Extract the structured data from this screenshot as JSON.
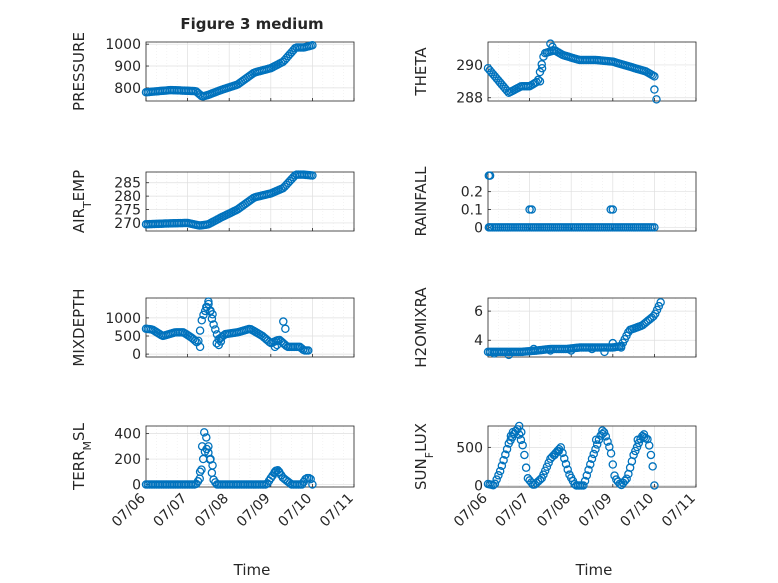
{
  "figure": {
    "title": "Figure 3 medium",
    "xlabel": "Time",
    "colors": {
      "marker": "#0072bd",
      "axes": "#262626",
      "grid": "#dfdfdf",
      "minor_grid": "#ececec",
      "background": "#ffffff"
    }
  },
  "chart_data": [
    {
      "type": "scatter",
      "marker": "circle-open",
      "title": "Figure 3 medium",
      "ylabel": "PRESSURE",
      "ylim": [
        740,
        1010
      ],
      "yticks": [
        800,
        900,
        1000
      ],
      "xlim": [
        0,
        5
      ],
      "xticklabels": [
        "07/06",
        "07/07",
        "07/08",
        "07/09",
        "07/10",
        "07/11"
      ],
      "show_xticklabels": false,
      "xlabel": "",
      "knots": [
        [
          0,
          780
        ],
        [
          0.6,
          790
        ],
        [
          1.2,
          785
        ],
        [
          1.35,
          760
        ],
        [
          1.5,
          768
        ],
        [
          1.8,
          790
        ],
        [
          2.2,
          815
        ],
        [
          2.6,
          870
        ],
        [
          3.0,
          890
        ],
        [
          3.3,
          920
        ],
        [
          3.6,
          985
        ],
        [
          3.8,
          985
        ],
        [
          4.0,
          995
        ]
      ]
    },
    {
      "type": "scatter",
      "marker": "circle-open",
      "title": "",
      "ylabel": "THETA",
      "ylim": [
        287.8,
        291.4
      ],
      "yticks": [
        288,
        290
      ],
      "xlim": [
        0,
        5
      ],
      "xticklabels": [
        "07/06",
        "07/07",
        "07/08",
        "07/09",
        "07/10",
        "07/11"
      ],
      "show_xticklabels": false,
      "xlabel": "",
      "knots": [
        [
          0,
          289.8
        ],
        [
          0.3,
          288.9
        ],
        [
          0.5,
          288.3
        ],
        [
          0.8,
          288.7
        ],
        [
          1.0,
          288.7
        ],
        [
          1.2,
          289.0
        ],
        [
          1.35,
          290.7
        ],
        [
          1.6,
          290.9
        ],
        [
          1.8,
          290.6
        ],
        [
          2.2,
          290.3
        ],
        [
          2.6,
          290.3
        ],
        [
          3.0,
          290.2
        ],
        [
          3.4,
          289.9
        ],
        [
          3.8,
          289.6
        ],
        [
          4.0,
          289.3
        ]
      ],
      "extra_points": [
        [
          1.5,
          291.3
        ],
        [
          1.55,
          291.1
        ],
        [
          1.3,
          289.8
        ],
        [
          1.25,
          289.0
        ],
        [
          4.0,
          288.5
        ],
        [
          4.05,
          287.9
        ]
      ]
    },
    {
      "type": "scatter",
      "marker": "circle-open",
      "title": "",
      "ylabel": "AIR_TEMP",
      "ylabel_parts": [
        "AIR",
        "T",
        "EMP"
      ],
      "ylim": [
        267,
        289
      ],
      "yticks": [
        270,
        275,
        280,
        285
      ],
      "xlim": [
        0,
        5
      ],
      "xticklabels": [
        "07/06",
        "07/07",
        "07/08",
        "07/09",
        "07/10",
        "07/11"
      ],
      "show_xticklabels": false,
      "xlabel": "",
      "knots": [
        [
          0,
          269.5
        ],
        [
          0.5,
          269.8
        ],
        [
          1.0,
          270.0
        ],
        [
          1.3,
          269.0
        ],
        [
          1.5,
          269.5
        ],
        [
          1.8,
          272
        ],
        [
          2.2,
          275
        ],
        [
          2.6,
          279.5
        ],
        [
          3.0,
          281
        ],
        [
          3.3,
          283
        ],
        [
          3.6,
          288
        ],
        [
          3.8,
          288
        ],
        [
          4.0,
          287.7
        ]
      ]
    },
    {
      "type": "scatter",
      "marker": "circle-open",
      "title": "",
      "ylabel": "RAINFALL",
      "ylim": [
        -0.02,
        0.31
      ],
      "yticks": [
        0,
        0.1,
        0.2
      ],
      "xlim": [
        0,
        5
      ],
      "xticklabels": [
        "07/06",
        "07/07",
        "07/08",
        "07/09",
        "07/10",
        "07/11"
      ],
      "show_xticklabels": false,
      "xlabel": "",
      "knots": [
        [
          0,
          0
        ],
        [
          4.0,
          0
        ]
      ],
      "extra_points": [
        [
          0.02,
          0.29
        ],
        [
          0.05,
          0.29
        ],
        [
          0.02,
          0
        ],
        [
          0.05,
          0
        ],
        [
          0.1,
          0
        ],
        [
          0.15,
          0
        ],
        [
          0.2,
          0
        ],
        [
          0.25,
          0
        ],
        [
          0.3,
          0
        ],
        [
          0.35,
          0
        ],
        [
          0.4,
          0
        ],
        [
          0.45,
          0
        ],
        [
          0.5,
          0
        ],
        [
          0.55,
          0
        ],
        [
          0.6,
          0
        ],
        [
          0.65,
          0
        ],
        [
          0.7,
          0
        ],
        [
          0.75,
          0
        ],
        [
          0.8,
          0
        ],
        [
          0.85,
          0
        ],
        [
          0.9,
          0
        ],
        [
          0.95,
          0
        ],
        [
          1.0,
          0
        ],
        [
          1.05,
          0
        ],
        [
          1.1,
          0
        ],
        [
          1.15,
          0
        ],
        [
          1.2,
          0
        ],
        [
          1.25,
          0
        ],
        [
          1.3,
          0
        ],
        [
          1.35,
          0
        ],
        [
          1.4,
          0
        ],
        [
          1.45,
          0
        ],
        [
          1.5,
          0
        ],
        [
          1.55,
          0
        ],
        [
          1.6,
          0
        ],
        [
          1.65,
          0
        ],
        [
          1.7,
          0
        ],
        [
          1.75,
          0
        ],
        [
          1.8,
          0
        ],
        [
          1.85,
          0
        ],
        [
          1.9,
          0
        ],
        [
          1.95,
          0
        ],
        [
          2.0,
          0
        ],
        [
          2.05,
          0
        ],
        [
          2.1,
          0
        ],
        [
          2.15,
          0
        ],
        [
          2.2,
          0
        ],
        [
          2.25,
          0
        ],
        [
          2.3,
          0
        ],
        [
          2.35,
          0
        ],
        [
          2.4,
          0
        ],
        [
          2.45,
          0
        ],
        [
          2.5,
          0
        ],
        [
          2.55,
          0
        ],
        [
          2.6,
          0
        ],
        [
          2.65,
          0
        ],
        [
          2.7,
          0
        ],
        [
          2.75,
          0
        ],
        [
          2.8,
          0
        ],
        [
          2.85,
          0
        ],
        [
          2.9,
          0
        ],
        [
          2.95,
          0
        ],
        [
          3.0,
          0
        ],
        [
          3.05,
          0
        ],
        [
          3.1,
          0
        ],
        [
          3.15,
          0
        ],
        [
          3.2,
          0
        ],
        [
          3.25,
          0
        ],
        [
          3.3,
          0
        ],
        [
          3.35,
          0
        ],
        [
          3.4,
          0
        ],
        [
          3.45,
          0
        ],
        [
          3.5,
          0
        ],
        [
          3.55,
          0
        ],
        [
          3.6,
          0
        ],
        [
          3.65,
          0
        ],
        [
          3.7,
          0
        ],
        [
          3.75,
          0
        ],
        [
          3.8,
          0
        ],
        [
          3.85,
          0
        ],
        [
          3.9,
          0
        ],
        [
          3.95,
          0
        ],
        [
          4.0,
          0
        ],
        [
          1.0,
          0.1
        ],
        [
          1.05,
          0.1
        ],
        [
          2.95,
          0.1
        ],
        [
          3.0,
          0.1
        ]
      ]
    },
    {
      "type": "scatter",
      "marker": "circle-open",
      "title": "",
      "ylabel": "MIXDEPTH",
      "ylim": [
        -80,
        1550
      ],
      "yticks": [
        0,
        500,
        1000
      ],
      "xlim": [
        0,
        5
      ],
      "xticklabels": [
        "07/06",
        "07/07",
        "07/08",
        "07/09",
        "07/10",
        "07/11"
      ],
      "show_xticklabels": false,
      "xlabel": "",
      "knots": [
        [
          0,
          700
        ],
        [
          0.15,
          680
        ],
        [
          0.4,
          500
        ],
        [
          0.7,
          600
        ],
        [
          0.9,
          600
        ],
        [
          1.1,
          450
        ],
        [
          1.25,
          300
        ],
        [
          1.35,
          1000
        ],
        [
          1.5,
          1400
        ],
        [
          1.6,
          900
        ],
        [
          1.75,
          400
        ],
        [
          1.9,
          550
        ],
        [
          2.2,
          600
        ],
        [
          2.5,
          700
        ],
        [
          2.8,
          500
        ],
        [
          3.0,
          300
        ],
        [
          3.2,
          400
        ],
        [
          3.4,
          200
        ],
        [
          3.7,
          200
        ],
        [
          3.8,
          100
        ],
        [
          3.9,
          100
        ]
      ],
      "extra_points": [
        [
          1.45,
          1300
        ],
        [
          1.5,
          1450
        ],
        [
          1.55,
          1200
        ],
        [
          1.6,
          1100
        ],
        [
          1.7,
          300
        ],
        [
          1.75,
          250
        ],
        [
          1.8,
          350
        ],
        [
          1.3,
          200
        ],
        [
          3.3,
          900
        ],
        [
          3.35,
          700
        ],
        [
          3.1,
          200
        ],
        [
          3.15,
          250
        ]
      ]
    },
    {
      "type": "scatter",
      "marker": "circle-open",
      "title": "",
      "ylabel": "H2OMIXRA",
      "ylim": [
        2.85,
        6.9
      ],
      "yticks": [
        4,
        6
      ],
      "xlim": [
        0,
        5
      ],
      "xticklabels": [
        "07/06",
        "07/07",
        "07/08",
        "07/09",
        "07/10",
        "07/11"
      ],
      "show_xticklabels": false,
      "xlabel": "",
      "knots": [
        [
          0,
          3.2
        ],
        [
          0.4,
          3.2
        ],
        [
          0.8,
          3.2
        ],
        [
          1.2,
          3.3
        ],
        [
          1.5,
          3.4
        ],
        [
          1.9,
          3.4
        ],
        [
          2.2,
          3.5
        ],
        [
          2.6,
          3.5
        ],
        [
          3.0,
          3.5
        ],
        [
          3.2,
          3.6
        ],
        [
          3.4,
          4.7
        ],
        [
          3.7,
          5.0
        ],
        [
          4.0,
          5.7
        ],
        [
          4.15,
          6.6
        ]
      ],
      "extra_points": [
        [
          0.15,
          3.1
        ],
        [
          0.5,
          3.0
        ],
        [
          1.1,
          3.4
        ],
        [
          1.5,
          3.3
        ],
        [
          2.0,
          3.3
        ],
        [
          2.5,
          3.4
        ],
        [
          2.8,
          3.2
        ],
        [
          3.0,
          3.8
        ],
        [
          3.2,
          3.5
        ]
      ]
    },
    {
      "type": "scatter",
      "marker": "circle-open",
      "title": "",
      "ylabel": "TERR_MSL",
      "ylabel_parts": [
        "TERR",
        "M",
        "SL"
      ],
      "ylim": [
        -20,
        460
      ],
      "yticks": [
        0,
        200,
        400
      ],
      "xlim": [
        0,
        5
      ],
      "xticklabels": [
        "07/06",
        "07/07",
        "07/08",
        "07/09",
        "07/10",
        "07/11"
      ],
      "show_xticklabels": true,
      "xlabel": "Time",
      "knots": [
        [
          0,
          0
        ],
        [
          0.5,
          0
        ],
        [
          1.0,
          0
        ],
        [
          1.2,
          0
        ],
        [
          1.3,
          50
        ],
        [
          1.4,
          250
        ],
        [
          1.5,
          300
        ],
        [
          1.6,
          50
        ],
        [
          1.7,
          0
        ],
        [
          2.2,
          0
        ],
        [
          2.6,
          0
        ],
        [
          2.9,
          0
        ],
        [
          3.0,
          50
        ],
        [
          3.15,
          120
        ],
        [
          3.3,
          50
        ],
        [
          3.5,
          0
        ],
        [
          3.75,
          0
        ],
        [
          3.85,
          50
        ],
        [
          3.95,
          50
        ],
        [
          4.0,
          0
        ]
      ],
      "extra_points": [
        [
          1.3,
          100
        ],
        [
          1.4,
          410
        ],
        [
          1.45,
          370
        ],
        [
          1.5,
          250
        ],
        [
          1.55,
          200
        ],
        [
          1.6,
          150
        ],
        [
          1.35,
          300
        ],
        [
          3.1,
          100
        ],
        [
          3.2,
          100
        ]
      ]
    },
    {
      "type": "scatter",
      "marker": "circle-open",
      "title": "",
      "ylabel": "SUN_FLUX",
      "ylabel_parts": [
        "SUN",
        "F",
        "LUX"
      ],
      "ylim": [
        -20,
        780
      ],
      "yticks": [
        0,
        500
      ],
      "xlim": [
        0,
        5
      ],
      "xticklabels": [
        "07/06",
        "07/07",
        "07/08",
        "07/09",
        "07/10",
        "07/11"
      ],
      "show_xticklabels": true,
      "xlabel": "Time",
      "knots": [
        [
          0,
          20
        ],
        [
          0.15,
          0
        ],
        [
          0.3,
          200
        ],
        [
          0.5,
          550
        ],
        [
          0.7,
          750
        ],
        [
          0.85,
          500
        ],
        [
          0.95,
          100
        ],
        [
          1.1,
          0
        ],
        [
          1.3,
          100
        ],
        [
          1.5,
          350
        ],
        [
          1.75,
          500
        ],
        [
          1.95,
          150
        ],
        [
          2.1,
          0
        ],
        [
          2.3,
          0
        ],
        [
          2.5,
          350
        ],
        [
          2.7,
          650
        ],
        [
          2.8,
          700
        ],
        [
          2.95,
          450
        ],
        [
          3.05,
          100
        ],
        [
          3.2,
          0
        ],
        [
          3.35,
          100
        ],
        [
          3.5,
          400
        ],
        [
          3.7,
          650
        ],
        [
          3.85,
          600
        ],
        [
          3.95,
          300
        ],
        [
          4.0,
          0
        ]
      ],
      "extra_points": [
        [
          0.55,
          650
        ],
        [
          0.6,
          700
        ],
        [
          0.75,
          780
        ],
        [
          0.8,
          700
        ],
        [
          1.6,
          400
        ],
        [
          1.7,
          450
        ],
        [
          2.6,
          600
        ],
        [
          2.75,
          720
        ],
        [
          3.6,
          600
        ],
        [
          3.75,
          670
        ]
      ]
    }
  ]
}
